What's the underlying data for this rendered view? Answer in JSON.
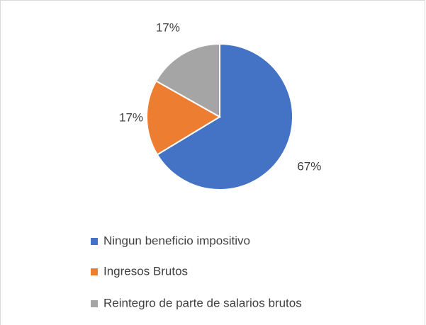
{
  "chart_data": {
    "type": "pie",
    "categories": [
      "Ningun beneficio impositivo",
      "Ingresos Brutos",
      "Reintegro de parte de salarios brutos"
    ],
    "values": [
      67,
      17,
      17
    ],
    "value_labels": [
      "67%",
      "17%",
      "17%"
    ],
    "colors": [
      "#4472c4",
      "#ed7d31",
      "#a5a5a5"
    ],
    "legend": "bottom"
  }
}
